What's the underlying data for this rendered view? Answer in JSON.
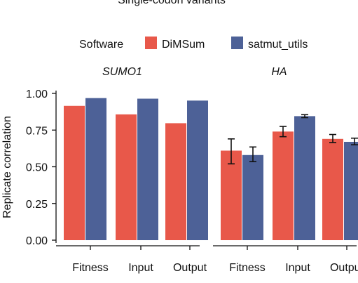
{
  "chart_data": {
    "type": "bar",
    "title": "Single-codon variants",
    "ylabel": "Replicate correlation",
    "ylim": [
      0,
      1
    ],
    "yticks": [
      "0.00",
      "0.25",
      "0.50",
      "0.75",
      "1.00"
    ],
    "categories": [
      "Fitness",
      "Input",
      "Output"
    ],
    "legend": {
      "title": "Software",
      "placement": "top",
      "entries": [
        {
          "name": "DiMSum",
          "color": "#e8584a"
        },
        {
          "name": "satmut_utils",
          "color": "#4d6197"
        }
      ]
    },
    "panels": [
      {
        "name": "SUMO1",
        "series": [
          {
            "name": "DiMSum",
            "values": [
              0.915,
              0.857,
              0.797
            ]
          },
          {
            "name": "satmut_utils",
            "values": [
              0.968,
              0.964,
              0.951
            ]
          }
        ]
      },
      {
        "name": "HA",
        "series": [
          {
            "name": "DiMSum",
            "values": [
              0.61,
              0.74,
              0.69
            ],
            "error_low": [
              0.52,
              0.705,
              0.665
            ],
            "error_high": [
              0.69,
              0.775,
              0.72
            ]
          },
          {
            "name": "satmut_utils",
            "values": [
              0.58,
              0.845,
              0.67
            ],
            "error_low": [
              0.535,
              0.835,
              0.65
            ],
            "error_high": [
              0.635,
              0.855,
              0.695
            ]
          }
        ]
      }
    ]
  }
}
